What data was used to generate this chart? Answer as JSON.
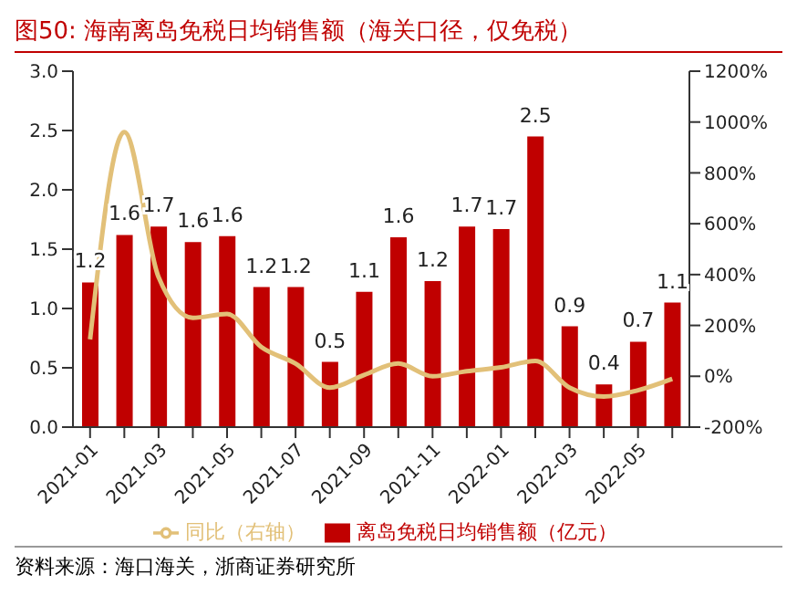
{
  "chart_data": {
    "type": "bar",
    "title": "图50:  海南离岛免税日均销售额（海关口径，仅免税）",
    "categories": [
      "2021-01",
      null,
      "2021-03",
      null,
      "2021-05",
      null,
      "2021-07",
      null,
      "2021-09",
      null,
      "2021-11",
      null,
      "2022-01",
      null,
      "2022-03",
      null,
      "2022-05",
      null
    ],
    "series": [
      {
        "name": "离岛免税日均销售额（亿元）",
        "color": "#c00000",
        "values": [
          1.22,
          1.62,
          1.69,
          1.56,
          1.61,
          1.18,
          1.18,
          0.55,
          1.14,
          1.6,
          1.23,
          1.69,
          1.67,
          2.45,
          0.85,
          0.36,
          0.72,
          1.05
        ],
        "value_labels": [
          "1.2",
          "1.6",
          "1.7",
          "1.6",
          "1.6",
          "1.2",
          "1.2",
          "0.5",
          "1.1",
          "1.6",
          "1.2",
          "1.7",
          "1.7",
          "2.5",
          "0.9",
          "0.4",
          "0.7",
          "1.1"
        ]
      },
      {
        "name": "同比（右轴）",
        "type": "line",
        "axis": "y2",
        "color": "#e2c078",
        "values": [
          145,
          960,
          390,
          230,
          245,
          115,
          50,
          -45,
          5,
          50,
          0,
          20,
          35,
          60,
          -45,
          -80,
          -55,
          -10
        ]
      }
    ],
    "ylim": [
      0,
      3
    ],
    "yticks": [
      {
        "value": 0,
        "label": "0.0"
      },
      {
        "value": 0.5,
        "label": "0.5"
      },
      {
        "value": 1,
        "label": "1.0"
      },
      {
        "value": 1.5,
        "label": "1.5"
      },
      {
        "value": 2,
        "label": "2.0"
      },
      {
        "value": 2.5,
        "label": "2.5"
      },
      {
        "value": 3,
        "label": "3.0"
      }
    ],
    "y2lim": [
      -200,
      1200
    ],
    "y2ticks": [
      {
        "value": -200,
        "label": "-200%"
      },
      {
        "value": 0,
        "label": "0%"
      },
      {
        "value": 200,
        "label": "200%"
      },
      {
        "value": 400,
        "label": "400%"
      },
      {
        "value": 600,
        "label": "600%"
      },
      {
        "value": 800,
        "label": "800%"
      },
      {
        "value": 1000,
        "label": "1000%"
      },
      {
        "value": 1200,
        "label": "1200%"
      }
    ],
    "grid": false,
    "legend": "bottom",
    "marker": "none",
    "line_style": "solid",
    "annotations": [
      "资料来源：海口海关，浙商证券研究所"
    ]
  }
}
